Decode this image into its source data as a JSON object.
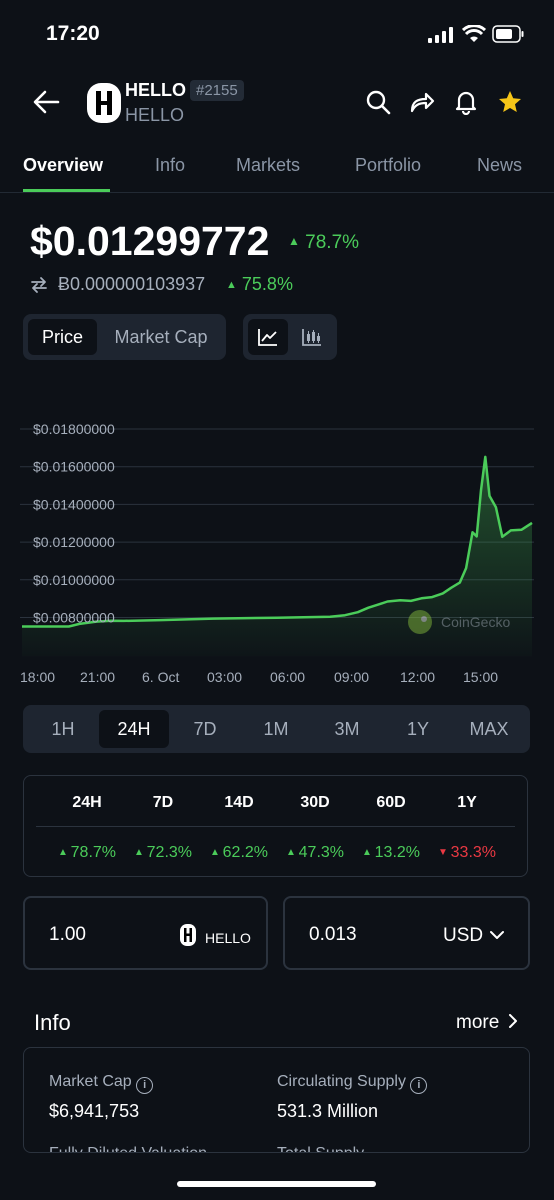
{
  "status_bar": {
    "time": "17:20"
  },
  "header": {
    "symbol": "HELLO",
    "rank": "#2155",
    "name": "HELLO"
  },
  "tabs": [
    {
      "label": "Overview",
      "active": true
    },
    {
      "label": "Info"
    },
    {
      "label": "Markets"
    },
    {
      "label": "Portfolio"
    },
    {
      "label": "News"
    }
  ],
  "price": {
    "usd": "$0.01299772",
    "usd_change": "78.7%",
    "btc": "Ƀ0.000000103937",
    "btc_change": "75.8%"
  },
  "toggles": {
    "price": "Price",
    "market_cap": "Market Cap"
  },
  "chart_data": {
    "type": "area",
    "y_ticks": [
      "$0.01800000",
      "$0.01600000",
      "$0.01400000",
      "$0.01200000",
      "$0.01000000",
      "$0.00800000"
    ],
    "x_ticks": [
      "18:00",
      "21:00",
      "6. Oct",
      "03:00",
      "06:00",
      "09:00",
      "12:00",
      "15:00"
    ],
    "ylim": [
      0.007,
      0.0185
    ],
    "xlim": [
      0,
      24
    ],
    "watermark": "CoinGecko",
    "series": [
      {
        "x": [
          0,
          2.2,
          2.7,
          3.5,
          4.2,
          4.8,
          6.5,
          9,
          12,
          14.5,
          15.2,
          15.8,
          16.3,
          16.8,
          17.2,
          17.8,
          18.3,
          18.8,
          19.3,
          19.8,
          20.2,
          20.6,
          20.9,
          21.2,
          21.4,
          21.6,
          21.8,
          22.0,
          22.3,
          22.6,
          23.0,
          23.5,
          24
        ],
        "y": [
          0.00752,
          0.00752,
          0.00766,
          0.00778,
          0.00783,
          0.00782,
          0.00786,
          0.00794,
          0.00799,
          0.00804,
          0.00812,
          0.00828,
          0.00852,
          0.0087,
          0.00885,
          0.00892,
          0.00888,
          0.00902,
          0.00908,
          0.00928,
          0.00958,
          0.00985,
          0.01062,
          0.01252,
          0.0123,
          0.01475,
          0.01652,
          0.01445,
          0.01385,
          0.01228,
          0.01262,
          0.01265,
          0.01302
        ]
      }
    ]
  },
  "ranges": {
    "items": [
      "1H",
      "24H",
      "7D",
      "1M",
      "3M",
      "1Y",
      "MAX"
    ],
    "selected": "24H"
  },
  "performance": {
    "headers": [
      "24H",
      "7D",
      "14D",
      "30D",
      "60D",
      "1Y"
    ],
    "values": [
      "78.7%",
      "72.3%",
      "62.2%",
      "47.3%",
      "13.2%",
      "33.3%"
    ],
    "directions": [
      "up",
      "up",
      "up",
      "up",
      "up",
      "down"
    ]
  },
  "converter": {
    "amount": "1.00",
    "token": "HELLO",
    "result": "0.013",
    "currency": "USD"
  },
  "info": {
    "title": "Info",
    "more": "more",
    "market_cap_label": "Market Cap",
    "market_cap": "$6,941,753",
    "circ_supply_label": "Circulating Supply",
    "circ_supply": "531.3 Million",
    "fdv_label": "Fully Diluted Valuation",
    "total_supply_label": "Total Supply"
  },
  "colors": {
    "up": "#4bcc5a",
    "down": "#ea3943",
    "bg": "#0d1117",
    "card": "#1e2530"
  }
}
